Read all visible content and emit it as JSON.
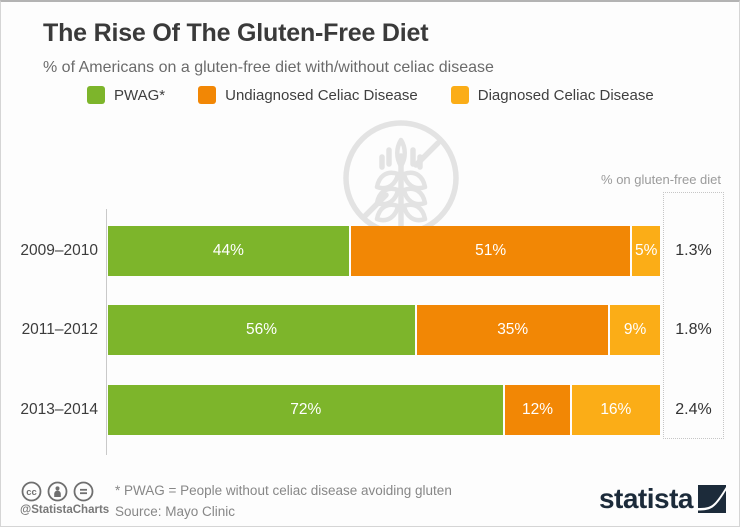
{
  "page": {
    "title": "The Rise Of The Gluten-Free Diet",
    "subtitle": "% of Americans on a gluten-free diet with/without celiac disease"
  },
  "legend": {
    "items": [
      {
        "label": "PWAG*",
        "color": "#7db52b"
      },
      {
        "label": "Undiagnosed Celiac Disease",
        "color": "#f28705"
      },
      {
        "label": "Diagnosed Celiac Disease",
        "color": "#fbad17"
      }
    ]
  },
  "chart_data": {
    "type": "bar",
    "variant": "horizontal-stacked",
    "title": "The Rise Of The Gluten-Free Diet",
    "subtitle": "% of Americans on a gluten-free diet with/without celiac disease",
    "categories": [
      "2009–2010",
      "2011–2012",
      "2013–2014"
    ],
    "series": [
      {
        "name": "PWAG*",
        "color": "#7db52b",
        "values": [
          44,
          56,
          72
        ]
      },
      {
        "name": "Undiagnosed Celiac Disease",
        "color": "#f28705",
        "values": [
          51,
          35,
          12
        ]
      },
      {
        "name": "Diagnosed Celiac Disease",
        "color": "#fbad17",
        "values": [
          5,
          9,
          16
        ]
      }
    ],
    "value_suffix": "%",
    "xlim": [
      0,
      100
    ],
    "legend_position": "top",
    "grid": false,
    "totals_label": "% on gluten-free diet",
    "totals": [
      "1.3%",
      "1.8%",
      "2.4%"
    ],
    "bars": [
      {
        "category": "2009–2010",
        "segments": [
          {
            "label": "44%",
            "value": 44
          },
          {
            "label": "51%",
            "value": 51
          },
          {
            "label": "5%",
            "value": 5
          }
        ],
        "total": "1.3%"
      },
      {
        "category": "2011–2012",
        "segments": [
          {
            "label": "56%",
            "value": 56
          },
          {
            "label": "35%",
            "value": 35
          },
          {
            "label": "9%",
            "value": 9
          }
        ],
        "total": "1.8%"
      },
      {
        "category": "2013–2014",
        "segments": [
          {
            "label": "72%",
            "value": 72
          },
          {
            "label": "12%",
            "value": 12
          },
          {
            "label": "16%",
            "value": 16
          }
        ],
        "total": "2.4%"
      }
    ]
  },
  "watermark": {
    "icon": "gluten-free-wheat-icon"
  },
  "footer": {
    "license_icons": [
      "cc-icon",
      "attribution-person-icon",
      "equals-icon"
    ],
    "handle": "@StatistaCharts",
    "footnote": "* PWAG = People without celiac disease avoiding gluten",
    "source": "Source: Mayo Clinic",
    "brand": "statista"
  },
  "colors": {
    "green": "#7db52b",
    "orange": "#f28705",
    "yellow": "#fbad17",
    "title_text": "#3a3a3a",
    "subtitle_text": "#6b6b6b",
    "brand_navy": "#1c2b3a",
    "watermark_gray": "#e3e3e3"
  }
}
